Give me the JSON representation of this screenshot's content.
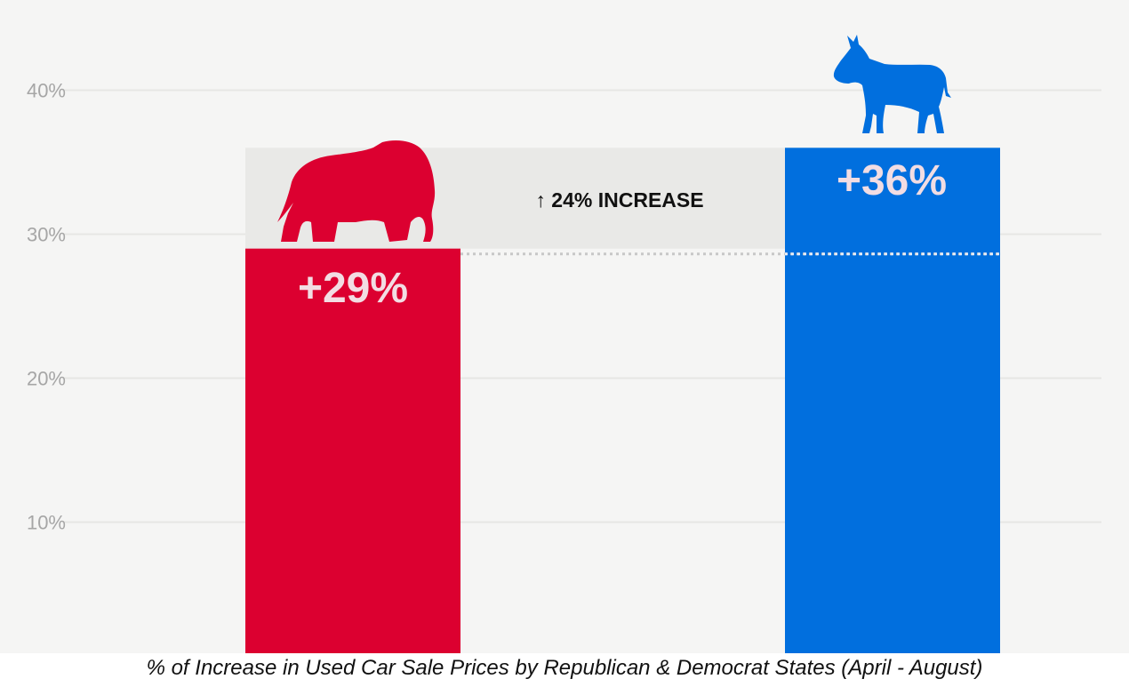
{
  "chart_data": {
    "type": "bar",
    "caption": "% of Increase in Used Car Sale Prices by Republican & Democrat States (April - August)",
    "y_ticks": [
      {
        "value": 10,
        "label": "10%"
      },
      {
        "value": 20,
        "label": "20%"
      },
      {
        "value": 30,
        "label": "30%"
      },
      {
        "value": 40,
        "label": "40%"
      }
    ],
    "ylim": [
      0,
      45
    ],
    "categories": [
      "Republican States",
      "Democrat States"
    ],
    "values": [
      29,
      36
    ],
    "value_labels": [
      "+29%",
      "+36%"
    ],
    "bar_colors": [
      "#dc0030",
      "#016fde"
    ],
    "comparison": {
      "label": "↑ 24% INCREASE",
      "from_value": 29,
      "to_value": 36
    },
    "icons": [
      "elephant-icon",
      "donkey-icon"
    ],
    "colors": {
      "background": "#f5f5f4",
      "gridline": "#e6e6e4",
      "tick_text": "#a6a6a6",
      "band": "#e9e9e7",
      "label_text": "#f2dde3"
    }
  }
}
